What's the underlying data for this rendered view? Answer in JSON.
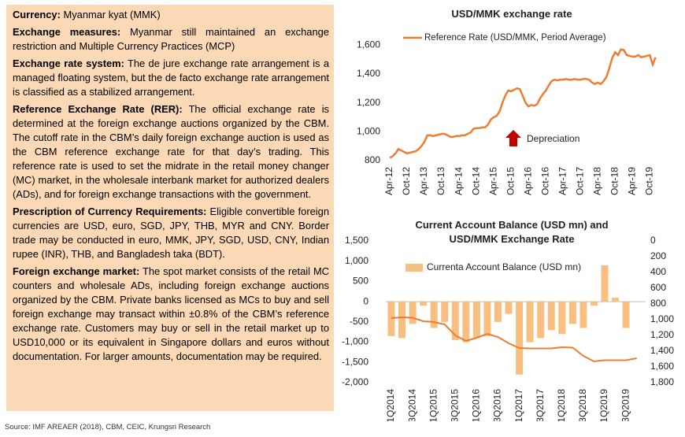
{
  "panel": {
    "items": [
      {
        "label": "Currency:",
        "text": "Myanmar kyat (MMK)"
      },
      {
        "label": "Exchange measures:",
        "text": "Myanmar still maintained an exchange restriction and Multiple Currency Practices (MCP)"
      },
      {
        "label": "Exchange rate system:",
        "text": "The de jure exchange rate arrangement is a managed floating system, but the de facto exchange rate arrangement is classified as a stabilized arrangement."
      },
      {
        "label": "Reference Exchange Rate (RER):",
        "text": "The official exchange rate is determined at the foreign exchange auctions organized by the CBM. The cutoff rate in the CBM’s daily foreign exchange auction is used as the CBM reference exchange rate for that day’s trading. This reference rate is used to set the midrate in the retail money changer (MC) market, in the wholesale interbank market for authorized dealers (ADs), and for foreign exchange transactions with the government."
      },
      {
        "label": "Prescription of Currency Requirements:",
        "text": "Eligible convertible foreign currencies are USD, euro, SGD, JPY, THB, MYR and CNY. Border trade may be conducted in euro, MMK, JPY, SGD, USD, CNY, Indian rupee (INR), THB, and Bangladesh taka (BDT)."
      },
      {
        "label": "Foreign exchange market:",
        "text": "The spot market consists of the retail MC counters and wholesale ADs, including foreign exchange auctions organized by the CBM. Private banks licensed as MCs to buy and sell foreign exchange may transact within ±0.8% of the CBM’s reference exchange rate. Customers may buy or sell in the retail market up to USD10,000 or its equivalent in Singapore dollars and euros without documentation. For larger amounts, documentation may be required."
      }
    ]
  },
  "source": "Source: IMF AREAER (2018), CBM, CEIC, Krungsri Research",
  "chart_data": [
    {
      "type": "line",
      "title": "USD/MMK exchange rate",
      "annotation": "Depreciation",
      "categories": [
        "Apr-12",
        null,
        null,
        null,
        null,
        null,
        "Oct-12",
        null,
        null,
        null,
        null,
        null,
        "Apr-13",
        null,
        null,
        null,
        null,
        null,
        "Oct-13",
        null,
        null,
        null,
        null,
        null,
        "Apr-14",
        null,
        null,
        null,
        null,
        null,
        "Oct-14",
        null,
        null,
        null,
        null,
        null,
        "Apr-15",
        null,
        null,
        null,
        null,
        null,
        "Oct-15",
        null,
        null,
        null,
        null,
        null,
        "Apr-16",
        null,
        null,
        null,
        null,
        null,
        "Oct-16",
        null,
        null,
        null,
        null,
        null,
        "Apr-17",
        null,
        null,
        null,
        null,
        null,
        "Oct-17",
        null,
        null,
        null,
        null,
        null,
        "Apr-18",
        null,
        null,
        null,
        null,
        null,
        "Oct-18",
        null,
        null,
        null,
        null,
        null,
        "Apr-19",
        null,
        null,
        null,
        null,
        null,
        "Oct-19",
        null,
        null
      ],
      "series": [
        {
          "name": "Reference Rate (USD/MMK, Period Average)",
          "color": "#ed7d31",
          "values": [
            820,
            830,
            850,
            880,
            870,
            860,
            850,
            855,
            860,
            865,
            880,
            900,
            930,
            975,
            975,
            970,
            975,
            980,
            985,
            985,
            975,
            965,
            965,
            970,
            970,
            975,
            975,
            985,
            995,
            1020,
            1025,
            1025,
            1030,
            1030,
            1050,
            1085,
            1100,
            1110,
            1140,
            1200,
            1250,
            1285,
            1280,
            1290,
            1300,
            1295,
            1250,
            1200,
            1175,
            1185,
            1180,
            1190,
            1230,
            1260,
            1285,
            1320,
            1350,
            1360,
            1355,
            1360,
            1360,
            1365,
            1360,
            1360,
            1365,
            1360,
            1360,
            1365,
            1365,
            1360,
            1340,
            1330,
            1340,
            1330,
            1350,
            1380,
            1440,
            1510,
            1550,
            1530,
            1570,
            1565,
            1530,
            1525,
            1520,
            1520,
            1530,
            1515,
            1520,
            1525,
            1530,
            1465,
            1515
          ]
        }
      ],
      "ylim": [
        800,
        1650
      ],
      "yticks": [
        800,
        {
          "value": 1000,
          "label": "1,000"
        },
        {
          "value": 1200,
          "label": "1,200"
        },
        {
          "value": 1400,
          "label": "1,400"
        },
        {
          "value": 1600,
          "label": "1,600"
        }
      ]
    },
    {
      "type": "bar_line",
      "title": "Current Account Balance (USD mn) and USD/MMK Exchange Rate",
      "categories": [
        "1Q2014",
        null,
        "3Q2014",
        null,
        "1Q2015",
        null,
        "3Q2015",
        null,
        "1Q2016",
        null,
        "3Q2016",
        null,
        "1Q2017",
        null,
        "3Q2017",
        null,
        "1Q2018",
        null,
        "3Q2018",
        null,
        "1Q2019",
        null,
        "3Q2019",
        null
      ],
      "series": [
        {
          "name": "Currenta Account Balance (USD mn)",
          "color": "#f9bf80",
          "values": [
            -850,
            -900,
            -550,
            -100,
            -650,
            -500,
            -950,
            -1000,
            -900,
            -850,
            -500,
            -300,
            -1800,
            -1000,
            -900,
            -700,
            -800,
            -550,
            -650,
            -100,
            900,
            100,
            -650,
            null
          ]
        },
        {
          "color": "#ed7d31",
          "axis": "y2",
          "values": [
            980,
            970,
            975,
            1020,
            1030,
            1060,
            1200,
            1270,
            1230,
            1180,
            1220,
            1300,
            1360,
            1365,
            1365,
            1365,
            1350,
            1355,
            1460,
            1530,
            1515,
            1515,
            1515,
            1490
          ]
        }
      ],
      "ylim": [
        -2000,
        1500
      ],
      "yticks": [
        {
          "value": -2000,
          "label": "-2,000"
        },
        {
          "value": -1500,
          "label": "-1,500"
        },
        {
          "value": -1000,
          "label": "-1,000"
        },
        -500,
        0,
        500,
        {
          "value": 1000,
          "label": "1,000"
        },
        {
          "value": 1500,
          "label": "1,500"
        }
      ],
      "y2lim": [
        0,
        1800
      ],
      "y2_reversed": true,
      "y2ticks": [
        0,
        200,
        400,
        600,
        800,
        {
          "value": 1000,
          "label": "1,000"
        },
        {
          "value": 1200,
          "label": "1,200"
        },
        {
          "value": 1400,
          "label": "1,400"
        },
        {
          "value": 1600,
          "label": "1,600"
        },
        {
          "value": 1800,
          "label": "1,800"
        }
      ]
    }
  ]
}
